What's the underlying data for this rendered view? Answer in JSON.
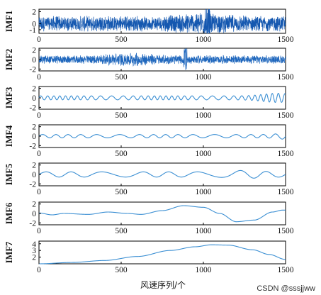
{
  "watermark": "CSDN @sssjjww",
  "chart_data": {
    "type": "line",
    "xlabel": "风速序列/个",
    "xlim": [
      0,
      1500
    ],
    "x_ticks": [
      0,
      500,
      1000,
      1500
    ],
    "n_points": 1500,
    "colors": {
      "imf1": "#1558b0",
      "imf2": "#1f67bd",
      "smooth": "#3b8fd3"
    },
    "panels": [
      {
        "name": "IMF1",
        "ylim": [
          -1.6,
          2.4
        ],
        "yticks": [
          2,
          0,
          -1
        ],
        "components": [
          [
            0.0,
            0.28,
            0.98,
            0.45,
            1.0,
            1.0
          ],
          [
            1010,
            1040,
            0.15
          ]
        ]
      },
      {
        "name": "IMF2",
        "ylim": [
          -2.4,
          2.4
        ],
        "yticks": [
          2,
          0,
          -2
        ],
        "components": [
          [
            0.0,
            0.08,
            0.62,
            0.4,
            0.55,
            1.1
          ],
          [
            880,
            900,
            0.6
          ]
        ]
      },
      {
        "name": "IMF3",
        "ylim": [
          -2.4,
          2.4
        ],
        "yticks": [
          2,
          0,
          -2
        ],
        "components": [
          [
            0.0,
            0.025,
            0.42,
            0.55,
            1.45,
            0.0
          ],
          [
            900,
            960,
            0.9
          ]
        ]
      },
      {
        "name": "IMF4",
        "ylim": [
          -2.4,
          2.4
        ],
        "yticks": [
          2,
          0,
          -2
        ],
        "components": [
          [
            0.0,
            0.012,
            0.35,
            0.75,
            1.6,
            0.0
          ],
          [
            820,
            900,
            0.0
          ]
        ]
      },
      {
        "name": "IMF5",
        "ylim": [
          -2.4,
          2.4
        ],
        "yticks": [
          2,
          0,
          -2
        ],
        "components": [
          [
            0.0,
            0.006,
            0.55,
            0.3,
            1.25,
            0.0
          ],
          [
            940,
            1200,
            0.0
          ]
        ]
      },
      {
        "name": "IMF6",
        "ylim": [
          -2.4,
          2.4
        ],
        "yticks": [
          2,
          0,
          -2
        ],
        "keypoints": [
          [
            0,
            0.1
          ],
          [
            80,
            -0.3
          ],
          [
            150,
            0.0
          ],
          [
            300,
            -0.2
          ],
          [
            420,
            0.3
          ],
          [
            540,
            0.0
          ],
          [
            620,
            -0.2
          ],
          [
            750,
            0.6
          ],
          [
            880,
            1.65
          ],
          [
            1000,
            1.3
          ],
          [
            1100,
            0.0
          ],
          [
            1200,
            -1.75
          ],
          [
            1310,
            -1.4
          ],
          [
            1420,
            0.3
          ],
          [
            1480,
            0.7
          ]
        ]
      },
      {
        "name": "IMF7",
        "ylim": [
          1,
          4.4
        ],
        "yticks": [
          4,
          3,
          2
        ],
        "keypoints": [
          [
            0,
            1.0
          ],
          [
            200,
            1.2
          ],
          [
            400,
            1.5
          ],
          [
            600,
            2.1
          ],
          [
            800,
            3.0
          ],
          [
            950,
            3.55
          ],
          [
            1050,
            3.85
          ],
          [
            1150,
            3.8
          ],
          [
            1300,
            3.1
          ],
          [
            1400,
            2.4
          ],
          [
            1500,
            1.65
          ]
        ]
      }
    ]
  }
}
